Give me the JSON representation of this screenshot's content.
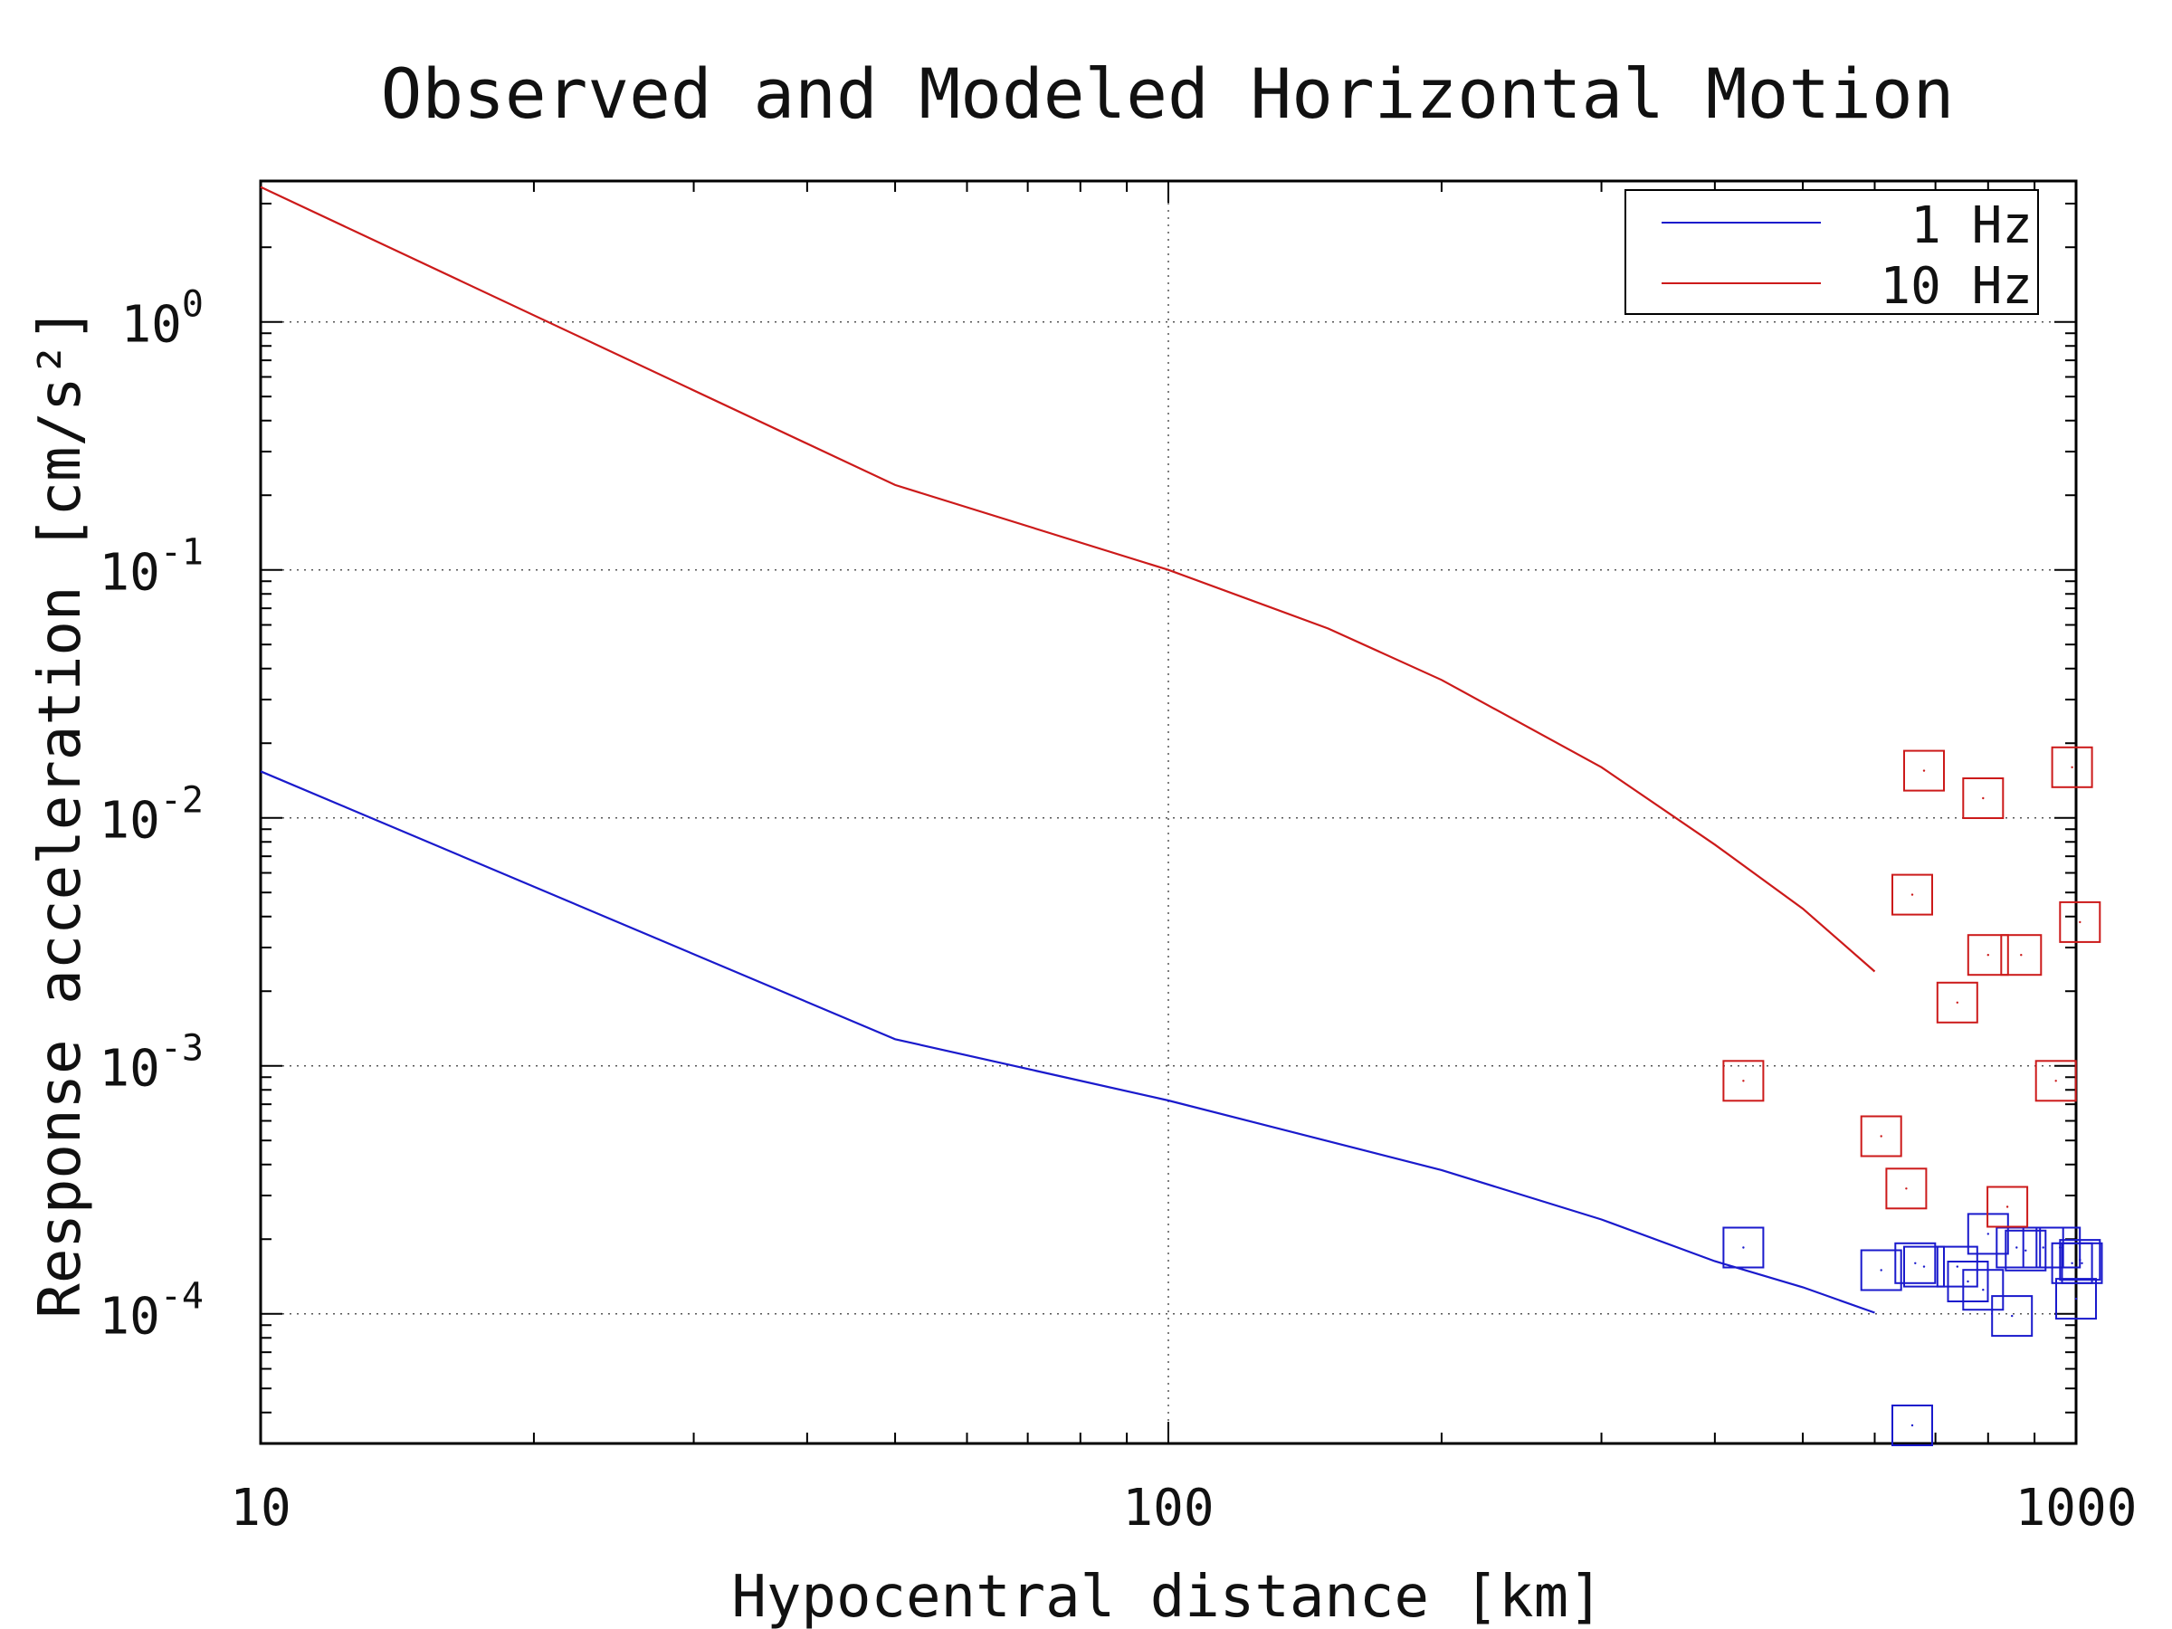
{
  "chart_data": {
    "type": "line",
    "title": "Observed and Modeled Horizontal Motion",
    "xlabel": "Hypocentral distance [km]",
    "ylabel": "Response acceleration [cm/s²]",
    "xscale": "log",
    "yscale": "log",
    "xlim": [
      10,
      1000
    ],
    "ylim": [
      3e-05,
      3.7
    ],
    "grid": true,
    "legend_position": "top-right",
    "x_ticks": [
      {
        "value": 10,
        "label": "10"
      },
      {
        "value": 100,
        "label": "100"
      },
      {
        "value": 1000,
        "label": "1000"
      }
    ],
    "y_ticks": [
      {
        "value": 1,
        "base": "10",
        "exp": "0"
      },
      {
        "value": 0.1,
        "base": "10",
        "exp": "-1"
      },
      {
        "value": 0.01,
        "base": "10",
        "exp": "-2"
      },
      {
        "value": 0.001,
        "base": "10",
        "exp": "-3"
      },
      {
        "value": 0.0001,
        "base": "10",
        "exp": "-4"
      }
    ],
    "series": [
      {
        "name": "1 Hz",
        "color": "#1a1acc",
        "model_line": {
          "x": [
            10,
            50,
            100,
            200,
            300,
            400,
            500,
            600
          ],
          "y": [
            0.0154,
            0.00128,
            0.000725,
            0.00038,
            0.00024,
            0.000163,
            0.000128,
            0.000101
          ]
        },
        "observed": {
          "x": [
            430,
            610,
            660,
            665,
            680,
            740,
            760,
            790,
            800,
            850,
            860,
            880,
            920,
            960,
            990,
            1000,
            1010,
            1015
          ],
          "y": [
            0.000185,
            0.00015,
            3.55e-05,
            0.00016,
            0.000155,
            0.000155,
            0.000135,
            0.000125,
            0.00021,
            9.8e-05,
            0.000185,
            0.00018,
            0.000185,
            0.000185,
            0.00016,
            0.000115,
            0.000165,
            0.00016
          ]
        }
      },
      {
        "name": "10 Hz",
        "color": "#cc1a1a",
        "model_line": {
          "x": [
            10,
            50,
            100,
            150,
            200,
            300,
            400,
            500,
            600
          ],
          "y": [
            3.5,
            0.22,
            0.1,
            0.058,
            0.036,
            0.016,
            0.0078,
            0.0043,
            0.0024
          ]
        },
        "observed": {
          "x": [
            430,
            610,
            650,
            660,
            680,
            740,
            790,
            800,
            840,
            870,
            950,
            990,
            1010
          ],
          "y": [
            0.00087,
            0.00052,
            0.00032,
            0.0049,
            0.0155,
            0.0018,
            0.012,
            0.0028,
            0.00027,
            0.0028,
            0.00087,
            0.016,
            0.0038
          ]
        }
      }
    ]
  }
}
